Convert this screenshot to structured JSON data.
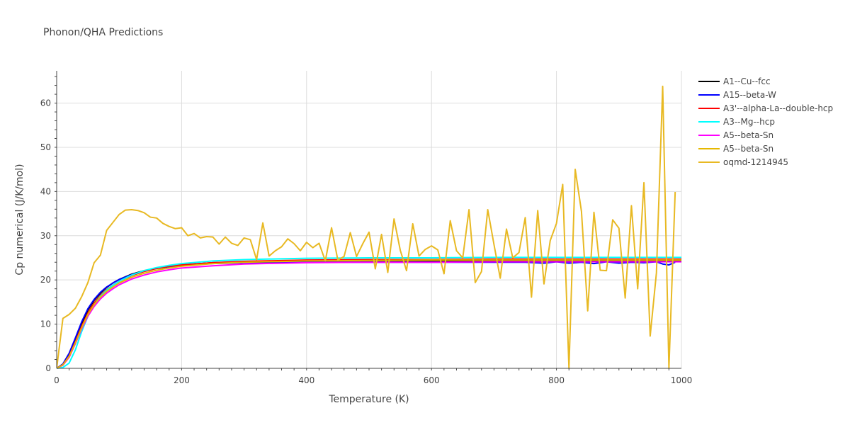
{
  "chart_data": {
    "type": "line",
    "title": "Phonon/QHA Predictions",
    "xlabel": "Temperature (K)",
    "ylabel": "Cp numerical (J/K/mol)",
    "xlim": [
      0,
      1000
    ],
    "ylim": [
      0,
      67.3
    ],
    "xticks": [
      0,
      200,
      400,
      600,
      800,
      1000
    ],
    "yticks": [
      0,
      10,
      20,
      30,
      40,
      50,
      60
    ],
    "grid": true,
    "legend_position": "right",
    "series": [
      {
        "name": "A1--Cu--fcc",
        "color": "#000000",
        "x": [
          0,
          10,
          20,
          30,
          40,
          50,
          60,
          70,
          80,
          90,
          100,
          120,
          140,
          160,
          180,
          200,
          250,
          300,
          400,
          500,
          600,
          700,
          800,
          900,
          1000
        ],
        "y": [
          0,
          0.9,
          3.2,
          6.6,
          10.2,
          13.2,
          15.4,
          17.0,
          18.3,
          19.3,
          20.1,
          21.3,
          22.1,
          22.7,
          23.1,
          23.4,
          23.9,
          24.1,
          24.3,
          24.3,
          24.3,
          24.3,
          24.3,
          24.3,
          24.3
        ]
      },
      {
        "name": "A15--beta-W",
        "color": "#0000ff",
        "x": [
          0,
          10,
          20,
          30,
          40,
          50,
          60,
          70,
          80,
          90,
          100,
          120,
          140,
          160,
          180,
          200,
          250,
          300,
          400,
          500,
          600,
          700,
          750,
          780,
          800,
          820,
          840,
          860,
          880,
          900,
          920,
          940,
          960,
          970,
          980,
          990
        ],
        "y": [
          0,
          1.0,
          3.4,
          6.9,
          10.5,
          13.5,
          15.6,
          17.2,
          18.4,
          19.3,
          20.1,
          21.2,
          22.0,
          22.6,
          23.0,
          23.3,
          23.7,
          23.9,
          24.0,
          24.0,
          24.0,
          24.0,
          24.0,
          23.8,
          24.1,
          23.8,
          24.0,
          23.7,
          24.1,
          23.8,
          24.0,
          23.9,
          24.1,
          23.6,
          23.4,
          24.0
        ]
      },
      {
        "name": "A3'--alpha-La--double-hcp",
        "color": "#ff0000",
        "x": [
          0,
          10,
          20,
          30,
          40,
          50,
          60,
          70,
          80,
          90,
          100,
          120,
          140,
          160,
          180,
          200,
          250,
          300,
          400,
          500,
          600,
          700,
          800,
          900,
          1000
        ],
        "y": [
          0,
          0.8,
          2.8,
          6.0,
          9.5,
          12.5,
          14.8,
          16.5,
          17.8,
          18.8,
          19.7,
          21.0,
          21.9,
          22.6,
          23.1,
          23.4,
          23.9,
          24.2,
          24.5,
          24.6,
          24.6,
          24.7,
          24.7,
          24.7,
          24.7
        ]
      },
      {
        "name": "A3--Mg--hcp",
        "color": "#00ffff",
        "x": [
          0,
          10,
          20,
          30,
          40,
          50,
          60,
          70,
          80,
          90,
          100,
          120,
          140,
          160,
          180,
          200,
          250,
          300,
          400,
          500,
          600,
          700,
          800,
          900,
          1000
        ],
        "y": [
          0,
          0.2,
          1.2,
          4.2,
          8.3,
          11.8,
          14.4,
          16.3,
          17.7,
          18.8,
          19.7,
          21.1,
          22.1,
          22.8,
          23.3,
          23.7,
          24.3,
          24.6,
          24.9,
          25.0,
          25.0,
          25.1,
          25.1,
          25.1,
          25.1
        ]
      },
      {
        "name": "A5--beta-Sn",
        "color": "#ff00ff",
        "x": [
          0,
          10,
          20,
          30,
          40,
          50,
          60,
          70,
          80,
          90,
          100,
          120,
          140,
          160,
          180,
          200,
          250,
          300,
          400,
          500,
          600,
          700,
          800,
          900,
          1000
        ],
        "y": [
          0,
          0.7,
          2.5,
          5.6,
          8.9,
          11.8,
          14.0,
          15.7,
          17.0,
          18.0,
          18.9,
          20.2,
          21.1,
          21.8,
          22.3,
          22.7,
          23.2,
          23.6,
          23.9,
          24.0,
          24.0,
          24.1,
          24.1,
          24.1,
          24.1
        ]
      },
      {
        "name": "A5--beta-Sn",
        "color": "#e6b800",
        "x": [
          0,
          10,
          20,
          30,
          40,
          50,
          60,
          70,
          80,
          90,
          100,
          120,
          140,
          160,
          180,
          200,
          250,
          300,
          400,
          500,
          600,
          700,
          800,
          900,
          1000
        ],
        "y": [
          0,
          0.8,
          2.7,
          5.8,
          9.2,
          12.2,
          14.4,
          16.1,
          17.4,
          18.4,
          19.3,
          20.6,
          21.5,
          22.2,
          22.7,
          23.1,
          23.7,
          24.0,
          24.3,
          24.4,
          24.5,
          24.5,
          24.5,
          24.5,
          24.5
        ]
      },
      {
        "name": "oqmd-1214945",
        "color": "#e8b923",
        "x": [
          0,
          10,
          20,
          30,
          40,
          50,
          60,
          70,
          80,
          90,
          100,
          110,
          120,
          130,
          140,
          150,
          160,
          170,
          180,
          190,
          200,
          210,
          220,
          230,
          240,
          250,
          260,
          270,
          280,
          290,
          300,
          310,
          320,
          330,
          340,
          350,
          360,
          370,
          380,
          390,
          400,
          410,
          420,
          430,
          440,
          450,
          460,
          470,
          480,
          490,
          500,
          510,
          520,
          530,
          540,
          550,
          560,
          570,
          580,
          590,
          600,
          610,
          620,
          630,
          640,
          650,
          660,
          670,
          680,
          690,
          700,
          710,
          720,
          730,
          740,
          750,
          760,
          770,
          780,
          790,
          800,
          810,
          820,
          830,
          840,
          850,
          860,
          870,
          880,
          890,
          900,
          910,
          920,
          930,
          940,
          950,
          960,
          970,
          980,
          990
        ],
        "y": [
          0,
          11.3,
          12.2,
          13.6,
          16.2,
          19.4,
          23.9,
          25.6,
          31.2,
          33.0,
          34.8,
          35.8,
          35.9,
          35.7,
          35.2,
          34.2,
          34.0,
          32.8,
          32.1,
          31.6,
          31.8,
          30.0,
          30.5,
          29.5,
          29.8,
          29.7,
          28.1,
          29.7,
          28.3,
          27.8,
          29.5,
          29.1,
          24.6,
          32.9,
          25.4,
          26.6,
          27.5,
          29.3,
          28.2,
          26.6,
          28.5,
          27.3,
          28.3,
          24.3,
          31.8,
          24.5,
          25.3,
          30.7,
          25.3,
          28.2,
          30.8,
          22.5,
          30.3,
          21.7,
          33.8,
          26.7,
          22.1,
          32.7,
          25.4,
          26.9,
          27.7,
          26.8,
          21.4,
          33.4,
          26.6,
          25.0,
          35.9,
          19.4,
          21.9,
          35.9,
          28.0,
          20.4,
          31.5,
          25.0,
          26.2,
          34.1,
          16.1,
          35.7,
          19.1,
          28.9,
          32.8,
          41.6,
          0.0,
          45.0,
          35.5,
          13.0,
          35.3,
          22.2,
          22.1,
          33.6,
          31.7,
          15.9,
          36.8,
          18.0,
          42.0,
          7.3,
          21.6,
          63.8,
          0.0,
          39.9
        ]
      }
    ]
  }
}
